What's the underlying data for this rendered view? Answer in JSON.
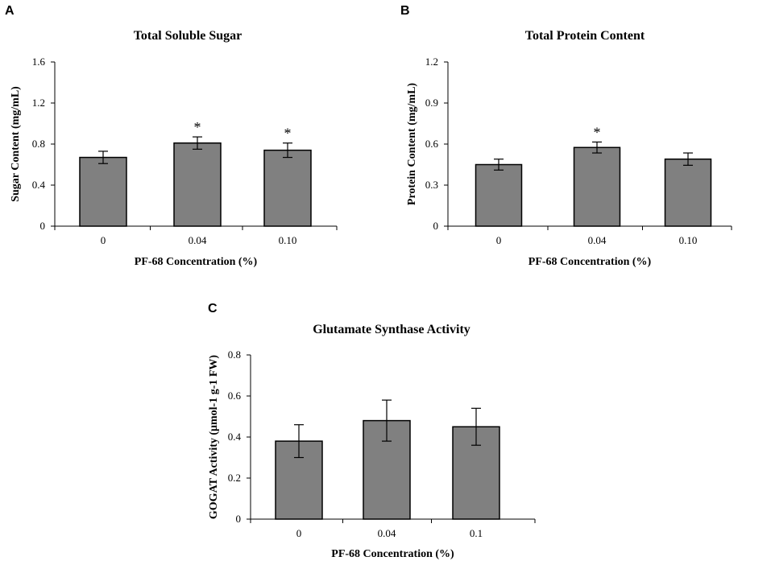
{
  "chart_data": [
    {
      "panel": "A",
      "type": "bar",
      "title": "Total Soluble Sugar",
      "xlabel": "PF-68 Concentration (%)",
      "ylabel": "Sugar Content (mg/mL)",
      "categories": [
        "0",
        "0.04",
        "0.10"
      ],
      "values": [
        0.67,
        0.81,
        0.74
      ],
      "errors": [
        0.06,
        0.06,
        0.07
      ],
      "significance": [
        "",
        "*",
        "*"
      ],
      "ylim": [
        0,
        1.6
      ],
      "yticks": [
        0,
        0.4,
        0.8,
        1.2,
        1.6
      ],
      "ytick_labels": [
        "0",
        "0.4",
        "0.8",
        "1.2",
        "1.6"
      ],
      "colors": {
        "bar_fill": "#808080",
        "bar_edge": "#000000"
      }
    },
    {
      "panel": "B",
      "type": "bar",
      "title": "Total Protein Content",
      "xlabel": "PF-68 Concentration (%)",
      "ylabel": "Protein Content (mg/mL)",
      "categories": [
        "0",
        "0.04",
        "0.10"
      ],
      "values": [
        0.45,
        0.575,
        0.49
      ],
      "errors": [
        0.04,
        0.04,
        0.045
      ],
      "significance": [
        "",
        "*",
        ""
      ],
      "ylim": [
        0,
        1.2
      ],
      "yticks": [
        0,
        0.3,
        0.6,
        0.9,
        1.2
      ],
      "ytick_labels": [
        "0",
        "0.3",
        "0.6",
        "0.9",
        "1.2"
      ],
      "colors": {
        "bar_fill": "#808080",
        "bar_edge": "#000000"
      }
    },
    {
      "panel": "C",
      "type": "bar",
      "title": "Glutamate Synthase Activity",
      "xlabel": "PF-68 Concentration (%)",
      "ylabel": "GOGAT Activity (μmol-1 g-1 FW)",
      "categories": [
        "0",
        "0.04",
        "0.1"
      ],
      "values": [
        0.38,
        0.48,
        0.45
      ],
      "errors": [
        0.08,
        0.1,
        0.09
      ],
      "significance": [
        "",
        "",
        ""
      ],
      "ylim": [
        0,
        0.8
      ],
      "yticks": [
        0,
        0.2,
        0.4,
        0.6,
        0.8
      ],
      "ytick_labels": [
        "0",
        "0.2",
        "0.4",
        "0.6",
        "0.8"
      ],
      "colors": {
        "bar_fill": "#808080",
        "bar_edge": "#000000"
      }
    }
  ]
}
